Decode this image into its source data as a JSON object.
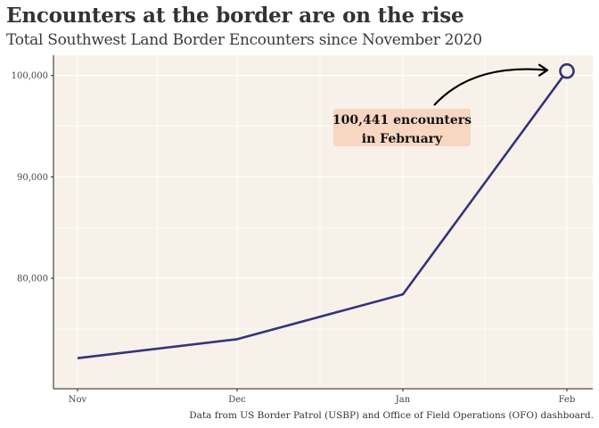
{
  "title": "Encounters at the border are on the rise",
  "subtitle": "Total Southwest Land Border Encounters since November 2020",
  "caption": "Data from US Border Patrol (USBP) and Office of Field Operations (OFO) dashboard.",
  "colors": {
    "panel_background": "#f8f1ea",
    "grid": "#ffffff",
    "line": "#34357a",
    "annotation_fill": "#f7d7c2",
    "axis": "#222222"
  },
  "chart_data": {
    "type": "line",
    "title": "Encounters at the border are on the rise",
    "subtitle": "Total Southwest Land Border Encounters since November 2020",
    "xlabel": "",
    "ylabel": "",
    "categories": [
      "Nov",
      "Dec",
      "Jan",
      "Feb"
    ],
    "series": [
      {
        "values": [
          72113,
          73994,
          78414,
          100441
        ]
      }
    ],
    "ylim": [
      69100,
      102000
    ],
    "yticks": [
      80000,
      90000,
      100000
    ],
    "ytick_labels": [
      "80,000",
      "90,000",
      "100,000"
    ],
    "highlight": {
      "category": "Feb",
      "value": 100441,
      "marker": "open-circle"
    },
    "annotation": {
      "lines": [
        "100,441 encounters",
        "in February"
      ],
      "points_to": "Feb"
    },
    "grid": true,
    "legend": "none"
  }
}
